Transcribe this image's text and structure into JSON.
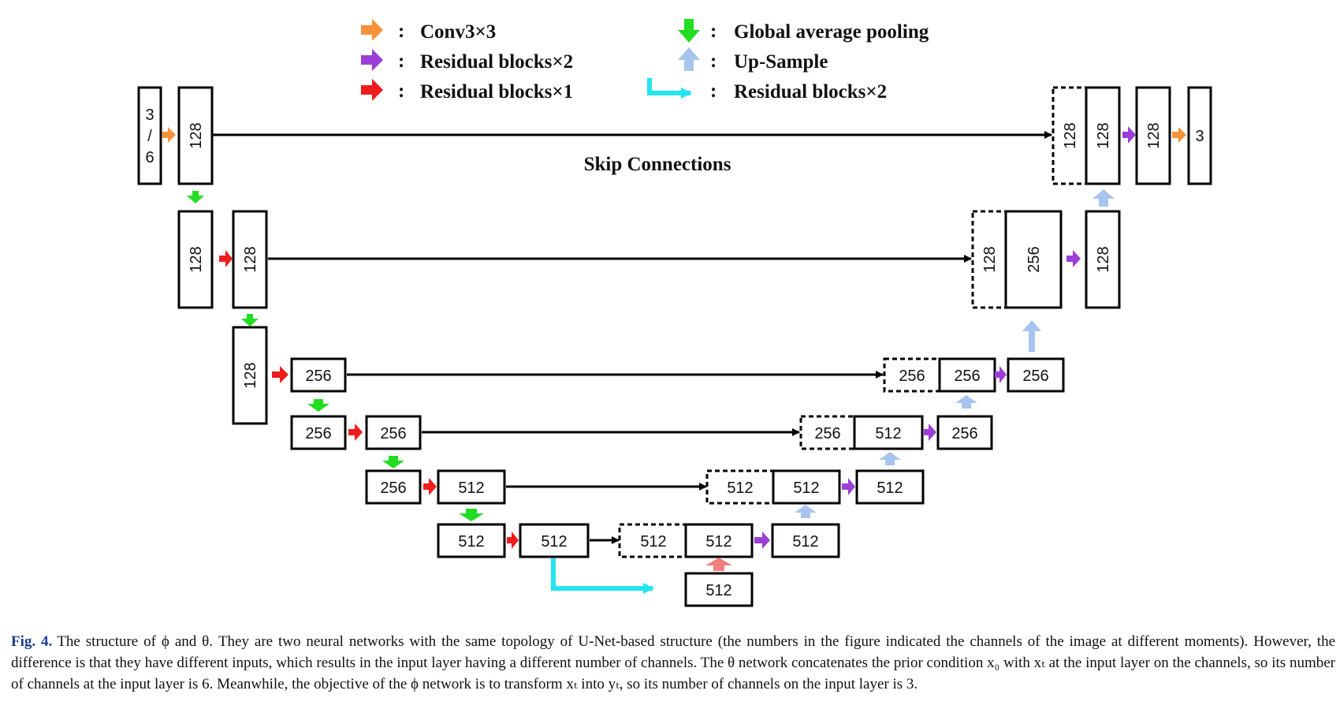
{
  "legend": {
    "col1": [
      {
        "key": "conv",
        "color": "#f7923a",
        "direction": "right",
        "text": "Conv3×3"
      },
      {
        "key": "res2",
        "color": "#9b3fd8",
        "direction": "right",
        "text": "Residual blocks×2"
      },
      {
        "key": "res1",
        "color": "#ee1c1c",
        "direction": "right",
        "text": "Residual blocks×1"
      }
    ],
    "col2": [
      {
        "key": "gap",
        "color": "#22dd22",
        "direction": "down",
        "text": "Global average pooling"
      },
      {
        "key": "up",
        "color": "#a7c4ee",
        "direction": "up",
        "text": "Up-Sample"
      },
      {
        "key": "res2b",
        "color": "#22e5f0",
        "direction": "l-shape",
        "text": "Residual blocks×2"
      }
    ],
    "separator": ":"
  },
  "skip_label": "Skip Connections",
  "blocks": {
    "in_top": "3",
    "in_slash": "/",
    "in_bot": "6",
    "e1": "128",
    "e2a": "128",
    "e2b": "128",
    "e3a": "128",
    "e3b": "256",
    "e4a": "256",
    "e4b": "256",
    "e5a": "256",
    "e5b": "512",
    "e6a": "512",
    "e6b": "512",
    "bottleneck": "512",
    "d6_cat": "512",
    "d6_up": "512",
    "d6_out": "512",
    "d5_cat": "512",
    "d5_up": "512",
    "d5_out": "512",
    "d4_cat": "256",
    "d4_up": "512",
    "d4_out": "256",
    "d3_cat": "256",
    "d3_up": "256",
    "d3_out": "256",
    "d2_cat": "128",
    "d2_up": "256",
    "d2_out": "128",
    "d1_cat": "128",
    "d1_up": "128",
    "d1_out": "128",
    "out": "3"
  },
  "caption": {
    "fig_label": "Fig. 4.",
    "text": "The structure of ϕ and θ. They are two neural networks with the same topology of U-Net-based structure (the numbers in the figure indicated the channels of the image at different moments). However, the difference is that they have different inputs, which results in the input layer having a different number of channels. The θ network concatenates the prior condition x₀ with xₜ at the input layer on the channels, so its number of channels at the input layer is 6. Meanwhile, the objective of the ϕ network is to transform xₜ into yₜ, so its number of channels on the input layer is 3."
  }
}
